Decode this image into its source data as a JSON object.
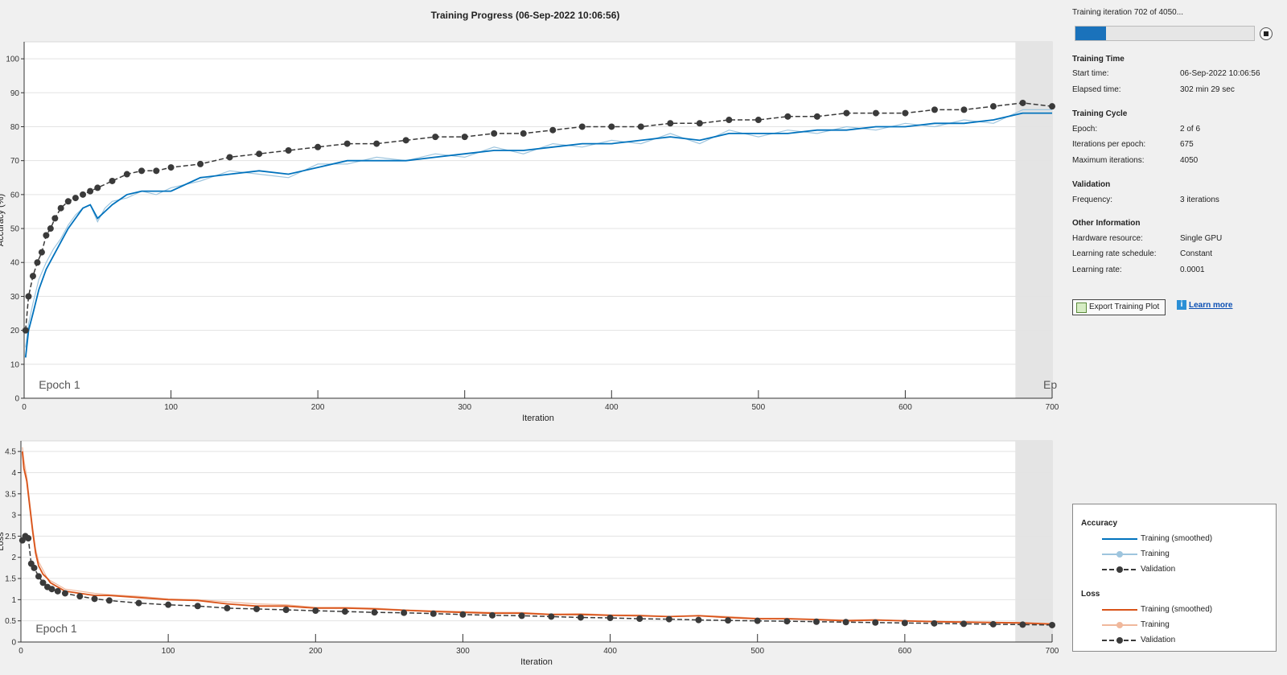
{
  "window": {
    "title": "Training Progress (06-Sep-2022 10:06:56)"
  },
  "panel": {
    "status": "Training iteration 702 of 4050...",
    "progress": 0.17,
    "sections": {
      "training_time": {
        "title": "Training Time",
        "rows": [
          {
            "label": "Start time:",
            "value": "06-Sep-2022 10:06:56"
          },
          {
            "label": "Elapsed time:",
            "value": "302 min 29 sec"
          }
        ]
      },
      "training_cycle": {
        "title": "Training Cycle",
        "rows": [
          {
            "label": "Epoch:",
            "value": "2 of 6"
          },
          {
            "label": "Iterations per epoch:",
            "value": "675"
          },
          {
            "label": "Maximum iterations:",
            "value": "4050"
          }
        ]
      },
      "validation": {
        "title": "Validation",
        "rows": [
          {
            "label": "Frequency:",
            "value": "3 iterations"
          }
        ]
      },
      "other": {
        "title": "Other Information",
        "rows": [
          {
            "label": "Hardware resource:",
            "value": "Single GPU"
          },
          {
            "label": "Learning rate schedule:",
            "value": "Constant"
          },
          {
            "label": "Learning rate:",
            "value": "0.0001"
          }
        ]
      }
    },
    "export_label": "Export Training Plot",
    "learn_more": "Learn more",
    "icons": {
      "stop": "stop-icon",
      "export": "export-plot-icon",
      "info": "info-icon"
    }
  },
  "legend": {
    "accuracy_title": "Accuracy",
    "loss_title": "Loss",
    "items": {
      "smoothed": "Training (smoothed)",
      "training": "Training",
      "validation": "Validation"
    }
  },
  "colors": {
    "acc_smoothed": "#0072bd",
    "acc_training": "#9ec5de",
    "loss_smoothed": "#d95319",
    "loss_training": "#f0b89c",
    "validation": "#3a3a3a",
    "epoch_shade": "#e4e4e4"
  },
  "chart_data": [
    {
      "type": "line",
      "xlabel": "Iteration",
      "ylabel": "Accuracy (%)",
      "xlim": [
        0,
        700
      ],
      "ylim": [
        0,
        105
      ],
      "xticks": [
        0,
        100,
        200,
        300,
        400,
        500,
        600,
        700
      ],
      "yticks": [
        0,
        10,
        20,
        30,
        40,
        50,
        60,
        70,
        80,
        90,
        100
      ],
      "grid": true,
      "epoch_labels": [
        {
          "text": "Epoch 1",
          "x": 10
        },
        {
          "text": "Ep",
          "x": 694
        }
      ],
      "epoch_boundary": 675,
      "series": [
        {
          "name": "Training (smoothed)",
          "x": [
            1,
            3,
            6,
            10,
            15,
            20,
            25,
            30,
            35,
            40,
            45,
            50,
            55,
            60,
            70,
            80,
            90,
            100,
            120,
            140,
            160,
            180,
            200,
            220,
            240,
            260,
            280,
            300,
            320,
            340,
            360,
            380,
            400,
            420,
            440,
            460,
            480,
            500,
            520,
            540,
            560,
            580,
            600,
            620,
            640,
            660,
            680,
            700
          ],
          "y": [
            12,
            20,
            25,
            32,
            38,
            42,
            46,
            50,
            53,
            56,
            57,
            53,
            55,
            57,
            60,
            61,
            61,
            61,
            65,
            66,
            67,
            66,
            68,
            70,
            70,
            70,
            71,
            72,
            73,
            73,
            74,
            75,
            75,
            76,
            77,
            76,
            78,
            78,
            78,
            79,
            79,
            80,
            80,
            81,
            81,
            82,
            84,
            84
          ]
        },
        {
          "name": "Training",
          "x": [
            1,
            3,
            6,
            10,
            15,
            20,
            25,
            30,
            35,
            40,
            45,
            50,
            55,
            60,
            70,
            80,
            90,
            100,
            120,
            140,
            160,
            180,
            200,
            220,
            240,
            260,
            280,
            300,
            320,
            340,
            360,
            380,
            400,
            420,
            440,
            460,
            480,
            500,
            520,
            540,
            560,
            580,
            600,
            620,
            640,
            660,
            680,
            700
          ],
          "y": [
            15,
            22,
            28,
            35,
            40,
            44,
            47,
            51,
            54,
            56,
            57,
            52,
            56,
            58,
            59,
            61,
            60,
            62,
            64,
            67,
            66,
            65,
            69,
            69,
            71,
            70,
            72,
            71,
            74,
            72,
            75,
            74,
            76,
            75,
            78,
            75,
            79,
            77,
            79,
            78,
            80,
            79,
            81,
            80,
            82,
            81,
            85,
            85
          ]
        },
        {
          "name": "Validation",
          "x": [
            1,
            3,
            6,
            9,
            12,
            15,
            18,
            21,
            25,
            30,
            35,
            40,
            45,
            50,
            60,
            70,
            80,
            90,
            100,
            120,
            140,
            160,
            180,
            200,
            220,
            240,
            260,
            280,
            300,
            320,
            340,
            360,
            380,
            400,
            420,
            440,
            460,
            480,
            500,
            520,
            540,
            560,
            580,
            600,
            620,
            640,
            660,
            680,
            700
          ],
          "y": [
            20,
            30,
            36,
            40,
            43,
            48,
            50,
            53,
            56,
            58,
            59,
            60,
            61,
            62,
            64,
            66,
            67,
            67,
            68,
            69,
            71,
            72,
            73,
            74,
            75,
            75,
            76,
            77,
            77,
            78,
            78,
            79,
            80,
            80,
            80,
            81,
            81,
            82,
            82,
            83,
            83,
            84,
            84,
            84,
            85,
            85,
            86,
            87,
            86
          ]
        }
      ]
    },
    {
      "type": "line",
      "xlabel": "Iteration",
      "ylabel": "Loss",
      "xlim": [
        0,
        700
      ],
      "ylim": [
        0,
        4.75
      ],
      "xticks": [
        0,
        100,
        200,
        300,
        400,
        500,
        600,
        700
      ],
      "yticks": [
        0,
        0.5,
        1,
        1.5,
        2,
        2.5,
        3,
        3.5,
        4,
        4.5
      ],
      "grid": true,
      "epoch_labels": [
        {
          "text": "Epoch 1",
          "x": 10
        }
      ],
      "epoch_boundary": 675,
      "series": [
        {
          "name": "Training (smoothed)",
          "x": [
            1,
            2,
            4,
            6,
            8,
            10,
            12,
            15,
            18,
            20,
            25,
            30,
            40,
            50,
            60,
            80,
            100,
            120,
            140,
            160,
            180,
            200,
            220,
            240,
            260,
            280,
            300,
            320,
            340,
            360,
            380,
            400,
            420,
            440,
            460,
            480,
            500,
            520,
            540,
            560,
            580,
            600,
            620,
            640,
            660,
            680,
            700
          ],
          "y": [
            4.5,
            4.1,
            3.8,
            3.2,
            2.6,
            2.1,
            1.8,
            1.6,
            1.5,
            1.4,
            1.3,
            1.2,
            1.15,
            1.1,
            1.1,
            1.05,
            1.0,
            0.98,
            0.9,
            0.85,
            0.85,
            0.8,
            0.8,
            0.78,
            0.75,
            0.72,
            0.7,
            0.68,
            0.68,
            0.65,
            0.65,
            0.63,
            0.62,
            0.6,
            0.62,
            0.58,
            0.55,
            0.55,
            0.53,
            0.5,
            0.52,
            0.5,
            0.48,
            0.47,
            0.46,
            0.45,
            0.42
          ]
        },
        {
          "name": "Training",
          "x": [
            1,
            2,
            4,
            6,
            8,
            10,
            12,
            15,
            18,
            20,
            25,
            30,
            40,
            50,
            60,
            80,
            100,
            120,
            140,
            160,
            180,
            200,
            220,
            240,
            260,
            280,
            300,
            320,
            340,
            360,
            380,
            400,
            420,
            440,
            460,
            480,
            500,
            520,
            540,
            560,
            580,
            600,
            620,
            640,
            660,
            680,
            700
          ],
          "y": [
            4.6,
            4.3,
            3.9,
            3.3,
            2.7,
            2.2,
            1.9,
            1.7,
            1.5,
            1.45,
            1.35,
            1.25,
            1.2,
            1.15,
            1.12,
            1.08,
            1.02,
            1.0,
            0.95,
            0.9,
            0.88,
            0.82,
            0.82,
            0.8,
            0.76,
            0.74,
            0.72,
            0.7,
            0.7,
            0.66,
            0.67,
            0.64,
            0.64,
            0.6,
            0.63,
            0.6,
            0.56,
            0.56,
            0.54,
            0.52,
            0.53,
            0.5,
            0.49,
            0.48,
            0.47,
            0.46,
            0.44
          ]
        },
        {
          "name": "Validation",
          "x": [
            1,
            3,
            5,
            7,
            9,
            12,
            15,
            18,
            21,
            25,
            30,
            40,
            50,
            60,
            80,
            100,
            120,
            140,
            160,
            180,
            200,
            220,
            240,
            260,
            280,
            300,
            320,
            340,
            360,
            380,
            400,
            420,
            440,
            460,
            480,
            500,
            520,
            540,
            560,
            580,
            600,
            620,
            640,
            660,
            680,
            700
          ],
          "y": [
            2.4,
            2.5,
            2.45,
            1.85,
            1.75,
            1.55,
            1.4,
            1.3,
            1.25,
            1.2,
            1.15,
            1.08,
            1.02,
            0.98,
            0.92,
            0.88,
            0.85,
            0.8,
            0.78,
            0.76,
            0.74,
            0.72,
            0.7,
            0.69,
            0.67,
            0.65,
            0.63,
            0.62,
            0.6,
            0.58,
            0.57,
            0.55,
            0.54,
            0.52,
            0.51,
            0.5,
            0.49,
            0.48,
            0.47,
            0.46,
            0.45,
            0.44,
            0.43,
            0.42,
            0.41,
            0.4
          ]
        }
      ]
    }
  ]
}
